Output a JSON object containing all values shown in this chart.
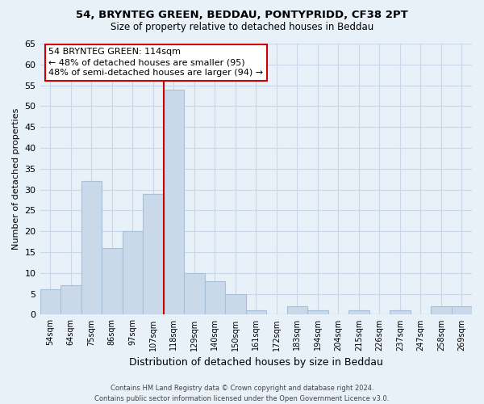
{
  "title1": "54, BRYNTEG GREEN, BEDDAU, PONTYPRIDD, CF38 2PT",
  "title2": "Size of property relative to detached houses in Beddau",
  "xlabel": "Distribution of detached houses by size in Beddau",
  "ylabel": "Number of detached properties",
  "bar_labels": [
    "54sqm",
    "64sqm",
    "75sqm",
    "86sqm",
    "97sqm",
    "107sqm",
    "118sqm",
    "129sqm",
    "140sqm",
    "150sqm",
    "161sqm",
    "172sqm",
    "183sqm",
    "194sqm",
    "204sqm",
    "215sqm",
    "226sqm",
    "237sqm",
    "247sqm",
    "258sqm",
    "269sqm"
  ],
  "bar_values": [
    6,
    7,
    32,
    16,
    20,
    29,
    54,
    10,
    8,
    5,
    1,
    0,
    2,
    1,
    0,
    1,
    0,
    1,
    0,
    2,
    2
  ],
  "bar_color": "#c9d9ea",
  "bar_edge_color": "#a8c0d8",
  "vline_x_idx": 6,
  "vline_color": "#cc0000",
  "ylim": [
    0,
    65
  ],
  "yticks": [
    0,
    5,
    10,
    15,
    20,
    25,
    30,
    35,
    40,
    45,
    50,
    55,
    60,
    65
  ],
  "annotation_title": "54 BRYNTEG GREEN: 114sqm",
  "annotation_line1": "← 48% of detached houses are smaller (95)",
  "annotation_line2": "48% of semi-detached houses are larger (94) →",
  "annotation_box_color": "#ffffff",
  "annotation_box_edge": "#cc0000",
  "footer1": "Contains HM Land Registry data © Crown copyright and database right 2024.",
  "footer2": "Contains public sector information licensed under the Open Government Licence v3.0.",
  "grid_color": "#c8d8e8",
  "background_color": "#e8f0f8"
}
